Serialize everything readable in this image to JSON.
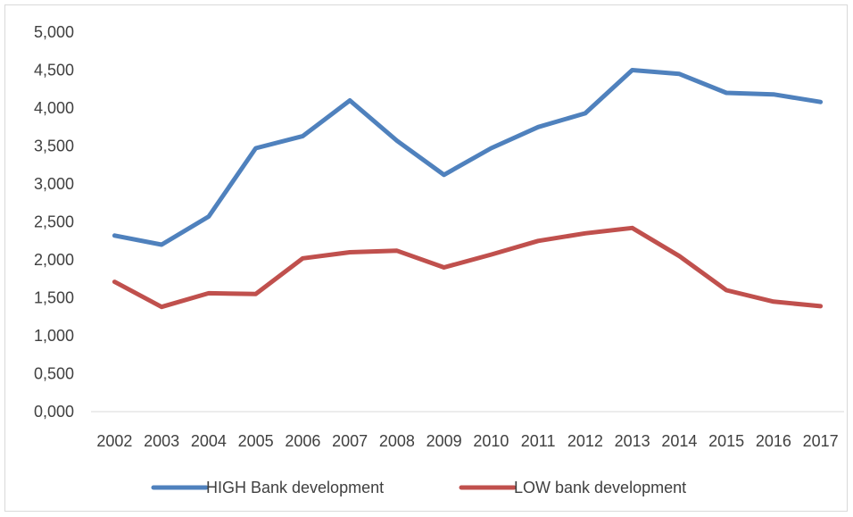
{
  "chart_data": {
    "type": "line",
    "title": "",
    "xlabel": "",
    "ylabel": "",
    "categories": [
      "2002",
      "2003",
      "2004",
      "2005",
      "2006",
      "2007",
      "2008",
      "2009",
      "2010",
      "2011",
      "2012",
      "2013",
      "2014",
      "2015",
      "2016",
      "2017"
    ],
    "ylim": [
      0,
      5
    ],
    "y_ticks": [
      "0,000",
      "0,500",
      "1,000",
      "1,500",
      "2,000",
      "2,500",
      "3,000",
      "3,500",
      "4,000",
      "4,500",
      "5,000"
    ],
    "grid": "none",
    "legend_position": "bottom",
    "series": [
      {
        "name": "HIGH Bank development",
        "color": "#4f81bd",
        "values": [
          2.32,
          2.2,
          2.57,
          3.47,
          3.63,
          4.1,
          3.57,
          3.12,
          3.47,
          3.75,
          3.93,
          4.5,
          4.45,
          4.2,
          4.18,
          4.08
        ]
      },
      {
        "name": "LOW bank development",
        "color": "#c0504d",
        "values": [
          1.71,
          1.38,
          1.56,
          1.55,
          2.02,
          2.1,
          2.12,
          1.9,
          2.07,
          2.25,
          2.35,
          2.42,
          2.05,
          1.6,
          1.45,
          1.39
        ]
      }
    ]
  }
}
